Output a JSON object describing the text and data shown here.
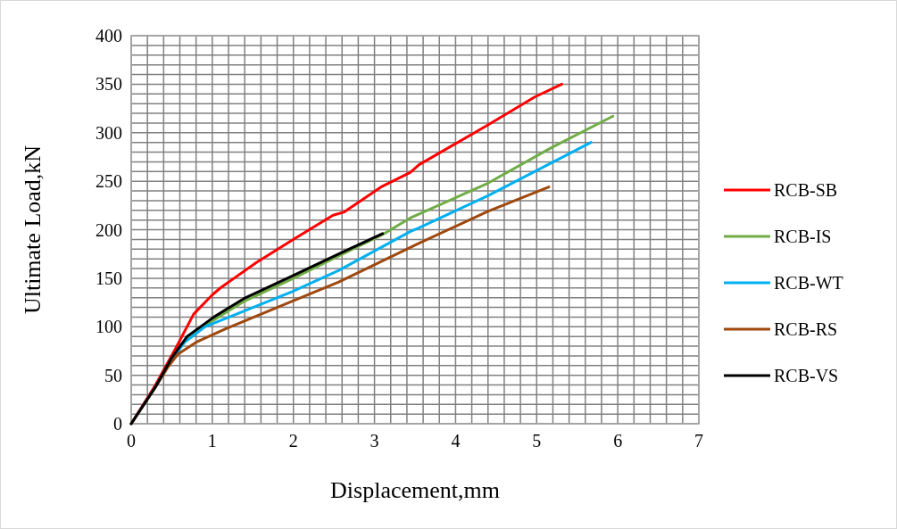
{
  "chart_data": {
    "type": "line",
    "xlabel": "Displacement,mm",
    "ylabel": "Ultimate Load,kN",
    "xlim": [
      0,
      7
    ],
    "ylim": [
      0,
      400
    ],
    "xticks": [
      0,
      {
        "value": 0.2,
        "label": null
      },
      {
        "value": 0.4,
        "label": null
      },
      {
        "value": 0.6,
        "label": null
      },
      {
        "value": 0.8,
        "label": null
      },
      1,
      {
        "value": 1.2,
        "label": null
      },
      {
        "value": 1.4,
        "label": null
      },
      {
        "value": 1.6,
        "label": null
      },
      {
        "value": 1.8,
        "label": null
      },
      2,
      {
        "value": 2.2,
        "label": null
      },
      {
        "value": 2.4,
        "label": null
      },
      {
        "value": 2.6,
        "label": null
      },
      {
        "value": 2.8,
        "label": null
      },
      3,
      {
        "value": 3.2,
        "label": null
      },
      {
        "value": 3.4,
        "label": null
      },
      {
        "value": 3.6,
        "label": null
      },
      {
        "value": 3.8,
        "label": null
      },
      4,
      {
        "value": 4.2,
        "label": null
      },
      {
        "value": 4.4,
        "label": null
      },
      {
        "value": 4.6,
        "label": null
      },
      {
        "value": 4.8,
        "label": null
      },
      5,
      {
        "value": 5.2,
        "label": null
      },
      {
        "value": 5.4,
        "label": null
      },
      {
        "value": 5.6,
        "label": null
      },
      {
        "value": 5.8,
        "label": null
      },
      6,
      {
        "value": 6.2,
        "label": null
      },
      {
        "value": 6.4,
        "label": null
      },
      {
        "value": 6.6,
        "label": null
      },
      {
        "value": 6.8,
        "label": null
      },
      7
    ],
    "yticks": [
      0,
      {
        "value": 10,
        "label": null
      },
      {
        "value": 20,
        "label": null
      },
      {
        "value": 30,
        "label": null
      },
      {
        "value": 40,
        "label": null
      },
      50,
      {
        "value": 60,
        "label": null
      },
      {
        "value": 70,
        "label": null
      },
      {
        "value": 80,
        "label": null
      },
      {
        "value": 90,
        "label": null
      },
      100,
      {
        "value": 110,
        "label": null
      },
      {
        "value": 120,
        "label": null
      },
      {
        "value": 130,
        "label": null
      },
      {
        "value": 140,
        "label": null
      },
      150,
      {
        "value": 160,
        "label": null
      },
      {
        "value": 170,
        "label": null
      },
      {
        "value": 180,
        "label": null
      },
      {
        "value": 190,
        "label": null
      },
      200,
      {
        "value": 210,
        "label": null
      },
      {
        "value": 220,
        "label": null
      },
      {
        "value": 230,
        "label": null
      },
      {
        "value": 240,
        "label": null
      },
      250,
      {
        "value": 260,
        "label": null
      },
      {
        "value": 270,
        "label": null
      },
      {
        "value": 280,
        "label": null
      },
      {
        "value": 290,
        "label": null
      },
      300,
      {
        "value": 310,
        "label": null
      },
      {
        "value": 320,
        "label": null
      },
      {
        "value": 330,
        "label": null
      },
      {
        "value": 340,
        "label": null
      },
      350,
      {
        "value": 360,
        "label": null
      },
      {
        "value": 370,
        "label": null
      },
      {
        "value": 380,
        "label": null
      },
      {
        "value": 390,
        "label": null
      },
      400
    ],
    "grid": true,
    "legend": "right",
    "marker": "none",
    "line_style": "solid",
    "series": [
      {
        "name": "RCB-SB",
        "color": "#ff0000",
        "x": [
          0,
          0.3,
          0.55,
          0.77,
          0.99,
          1.1,
          1.54,
          1.98,
          2.49,
          2.62,
          3.08,
          3.44,
          3.55,
          4.4,
          4.98,
          5.31
        ],
        "values": [
          0,
          40,
          78,
          113,
          132,
          140,
          166,
          189,
          215,
          218,
          244,
          259,
          267,
          308,
          337,
          350
        ]
      },
      {
        "name": "RCB-IS",
        "color": "#70ad47",
        "x": [
          0.69,
          1.02,
          1.39,
          1.98,
          2.56,
          3.1,
          3.44,
          4.4,
          5.17,
          5.94
        ],
        "values": [
          88,
          107,
          126,
          149,
          173,
          195,
          212,
          248,
          284,
          317
        ]
      },
      {
        "name": "RCB-WT",
        "color": "#00b0f0",
        "x": [
          0,
          0.3,
          0.5,
          0.66,
          0.91,
          1.21,
          1.98,
          2.56,
          3.44,
          3.55,
          4.4,
          5.67
        ],
        "values": [
          0,
          38,
          66,
          84,
          100,
          110,
          136,
          158,
          198,
          202,
          235,
          290
        ]
      },
      {
        "name": "RCB-RS",
        "color": "#9e480e",
        "x": [
          0,
          0.3,
          0.45,
          0.58,
          0.8,
          1.17,
          1.98,
          2.56,
          3.55,
          4.4,
          5.15
        ],
        "values": [
          0,
          38,
          58,
          72,
          84,
          98,
          126,
          146,
          186,
          219,
          244
        ]
      },
      {
        "name": "RCB-VS",
        "color": "#000000",
        "x": [
          0,
          0.3,
          0.5,
          0.69,
          1.02,
          1.39,
          1.98,
          2.56,
          3.1
        ],
        "values": [
          0,
          38,
          68,
          90,
          110,
          129,
          152,
          175,
          196
        ]
      }
    ]
  }
}
